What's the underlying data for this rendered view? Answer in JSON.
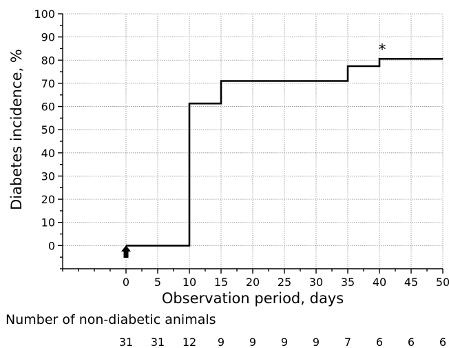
{
  "chart_data": {
    "type": "line",
    "step": true,
    "xlabel": "Observation period, days",
    "ylabel": "Diabetes incidence, %",
    "xlim": [
      -10,
      50
    ],
    "ylim": [
      -10,
      100
    ],
    "x_ticks": [
      0,
      5,
      10,
      15,
      20,
      25,
      30,
      35,
      40,
      45,
      50
    ],
    "y_ticks": [
      0,
      10,
      20,
      30,
      40,
      50,
      60,
      70,
      80,
      90,
      100
    ],
    "grid": true,
    "series": [
      {
        "x": [
          0,
          10,
          10,
          15,
          15,
          35,
          35,
          40,
          40,
          50
        ],
        "y": [
          0,
          0,
          61.3,
          61.3,
          71,
          71,
          77.4,
          77.4,
          80.6,
          80.6
        ]
      }
    ],
    "annotations": [
      {
        "text": "*",
        "x": 40,
        "y": 85
      },
      {
        "text": "arrow-up",
        "x": 0,
        "y": -5
      }
    ],
    "risk_table": {
      "title": "Number of non-diabetic animals",
      "x": [
        0,
        5,
        10,
        15,
        20,
        25,
        30,
        35,
        40,
        45,
        50
      ],
      "values": [
        31,
        31,
        12,
        9,
        9,
        9,
        9,
        7,
        6,
        6,
        6
      ]
    }
  }
}
